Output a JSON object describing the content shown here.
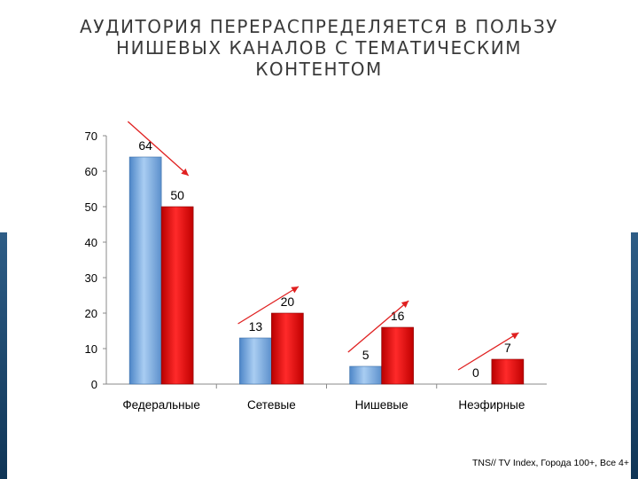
{
  "slide": {
    "title": "АУДИТОРИЯ ПЕРЕРАСПРЕДЕЛЯЕТСЯ В ПОЛЬЗУ\nНИШЕВЫХ КАНАЛОВ С ТЕМАТИЧЕСКИМ\nКОНТЕНТОМ",
    "source": "TNS// TV Index, Города 100+, Все 4+"
  },
  "chart_data": {
    "type": "bar",
    "categories": [
      "Федеральные",
      "Сетевые",
      "Нишевые",
      "Неэфирные"
    ],
    "series": [
      {
        "values": [
          64,
          13,
          5,
          0
        ],
        "color": "#7fb0e6"
      },
      {
        "values": [
          50,
          20,
          16,
          7
        ],
        "color": "#e01010"
      }
    ],
    "ylim": [
      0,
      70
    ],
    "yticks": [
      0,
      10,
      20,
      30,
      40,
      50,
      60,
      70
    ],
    "grid": false,
    "legend": "none",
    "trend_arrows": true,
    "arrow_color": "#e02020"
  }
}
